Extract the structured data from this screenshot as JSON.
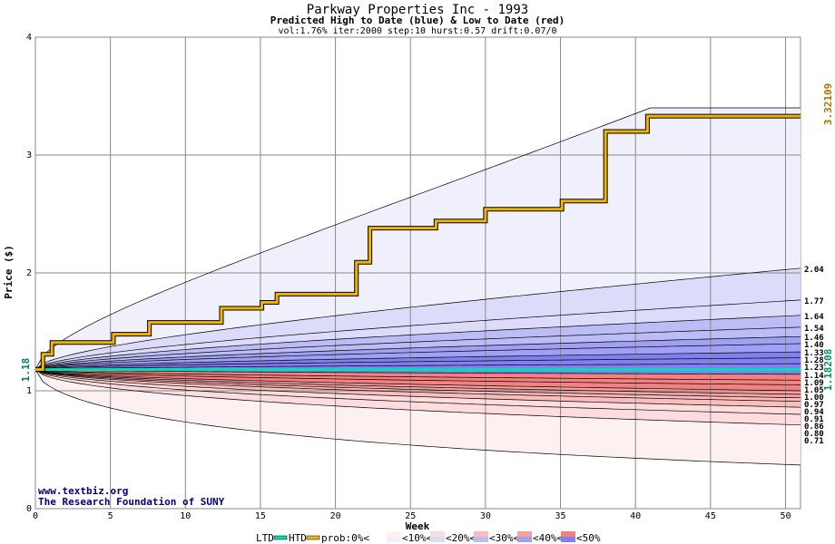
{
  "chart_data": {
    "type": "area",
    "title": "Parkway Properties Inc - 1993",
    "subtitle": "Predicted High to Date (blue) &  Low to Date (red)",
    "params": "vol:1.76% iter:2000 step:10 hurst:0.57 drift:0.07/0",
    "xlabel": "Week",
    "ylabel": "Price ($)",
    "xlim": [
      0,
      51
    ],
    "ylim": [
      0,
      4
    ],
    "xticks": [
      0,
      5,
      10,
      15,
      20,
      25,
      30,
      35,
      40,
      45,
      50
    ],
    "yticks": [
      0,
      1,
      2,
      3,
      4
    ],
    "start_price": 1.18,
    "start_label": "1.18",
    "htd_final_label": "3.32109",
    "ltd_final_label": "1.18208",
    "quantile_end_values": [
      3.4,
      2.04,
      1.77,
      1.64,
      1.54,
      1.46,
      1.4,
      1.33,
      1.28,
      1.23,
      1.14,
      1.09,
      1.05,
      1.0,
      0.97,
      0.94,
      0.91,
      0.86,
      0.8,
      0.71,
      0.37
    ],
    "quantile_labels": [
      "2.04",
      "1.77",
      "1.64",
      "1.54",
      "1.46",
      "1.40",
      "1.33",
      "1.28",
      "1.23",
      "1.14",
      "1.09",
      "1.05",
      "1.00",
      "0.97",
      "0.94",
      "0.91",
      "0.86",
      "0.80",
      "0.71"
    ],
    "htd_steps": [
      [
        0,
        1.18
      ],
      [
        0.5,
        1.31
      ],
      [
        1.1,
        1.41
      ],
      [
        5.2,
        1.48
      ],
      [
        7.6,
        1.58
      ],
      [
        12.4,
        1.7
      ],
      [
        15.1,
        1.75
      ],
      [
        16.1,
        1.82
      ],
      [
        21.4,
        2.09
      ],
      [
        22.3,
        2.38
      ],
      [
        26.7,
        2.44
      ],
      [
        30,
        2.54
      ],
      [
        35.1,
        2.61
      ],
      [
        38,
        3.2
      ],
      [
        40.8,
        3.33
      ],
      [
        51,
        3.33
      ]
    ],
    "ltd_value": 1.18,
    "watermark": [
      "www.textbiz.org",
      "The Research Foundation of SUNY"
    ],
    "legend": {
      "ltd": "LTD",
      "htd": "HTD",
      "prob": "prob:0%<",
      "bins": [
        "<10%<",
        "<20%<",
        "<30%<",
        "<40%<",
        "<50%"
      ]
    },
    "colors": {
      "htd": "#f0b400",
      "ltd": "#00e0b0",
      "upper": [
        "#f0f0fc",
        "#dcdcfa",
        "#bcbcf6",
        "#a0a0f4",
        "#8080f0"
      ],
      "lower": [
        "#fdf0f0",
        "#fcdcdc",
        "#fabcbc",
        "#f8a0a0",
        "#f48080"
      ]
    }
  }
}
